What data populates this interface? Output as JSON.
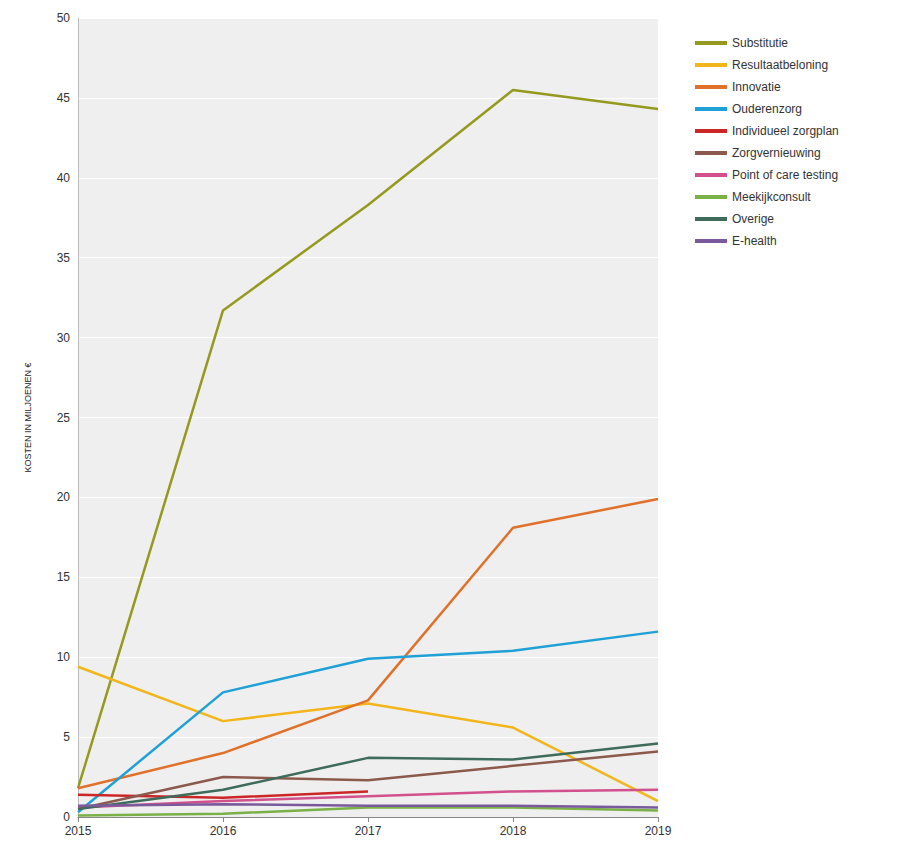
{
  "chart_data": {
    "type": "line",
    "y_label": "KOSTEN IN MILJOENEN €",
    "categories": [
      "2015",
      "2016",
      "2017",
      "2018",
      "2019"
    ],
    "series": [
      {
        "name": "Substitutie",
        "color": "#959a1e",
        "values": [
          1.8,
          31.7,
          38.3,
          45.5,
          44.3
        ]
      },
      {
        "name": "Resultaatbeloning",
        "color": "#f2b51a",
        "values": [
          9.4,
          6.0,
          7.1,
          5.6,
          1.0
        ]
      },
      {
        "name": "Innovatie",
        "color": "#e0712a",
        "values": [
          1.8,
          4.0,
          7.3,
          18.1,
          19.9
        ]
      },
      {
        "name": "Ouderenzorg",
        "color": "#1fa0d6",
        "values": [
          0.3,
          7.8,
          9.9,
          10.4,
          11.6
        ]
      },
      {
        "name": "Individueel zorgplan",
        "color": "#cc2727",
        "values": [
          1.4,
          1.2,
          1.6,
          null,
          null
        ]
      },
      {
        "name": "Zorgvernieuwing",
        "color": "#8c5a4c",
        "values": [
          0.5,
          2.5,
          2.3,
          3.2,
          4.1
        ]
      },
      {
        "name": "Point of care testing",
        "color": "#d2508c",
        "values": [
          0.6,
          1.0,
          1.3,
          1.6,
          1.7
        ]
      },
      {
        "name": "Meekijkconsult",
        "color": "#79b146",
        "values": [
          0.1,
          0.2,
          0.6,
          0.6,
          0.4
        ]
      },
      {
        "name": "Overige",
        "color": "#3f6b5b",
        "values": [
          0.5,
          1.7,
          3.7,
          3.6,
          4.6
        ]
      },
      {
        "name": "E-health",
        "color": "#7a5a9c",
        "values": [
          0.7,
          0.8,
          0.7,
          0.7,
          0.6
        ]
      }
    ],
    "ylim": [
      0,
      50
    ],
    "yticks": [
      0,
      5,
      10,
      15,
      20,
      25,
      30,
      35,
      40,
      45,
      50
    ],
    "grid": true,
    "legend": "right",
    "marker": "none",
    "line_style": "solid"
  }
}
